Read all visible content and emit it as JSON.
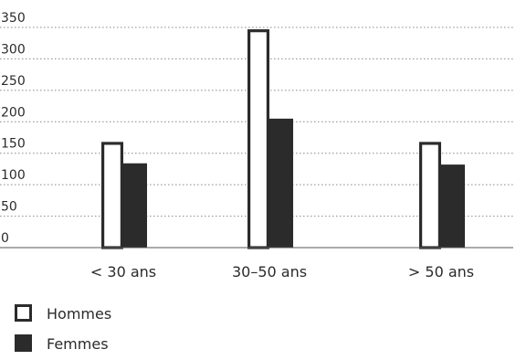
{
  "chart_data": {
    "type": "bar",
    "categories": [
      "< 30 ans",
      "30–50 ans",
      "> 50 ans"
    ],
    "series": [
      {
        "name": "Hommes",
        "values": [
          168,
          347,
          168
        ],
        "style": "outline"
      },
      {
        "name": "Femmes",
        "values": [
          134,
          205,
          132
        ],
        "style": "filled"
      }
    ],
    "title": "",
    "xlabel": "",
    "ylabel": "",
    "ylim": [
      0,
      350
    ],
    "yticks": [
      0,
      50,
      100,
      150,
      200,
      250,
      300,
      350
    ],
    "grid": "horizontal-dotted",
    "legend_position": "bottom-left",
    "colors": {
      "bar_fill": "#2b2b2b",
      "bar_outline": "#2b2b2b",
      "outline_inner": "#ffffff",
      "axis": "#555555",
      "grid": "#888888"
    }
  }
}
